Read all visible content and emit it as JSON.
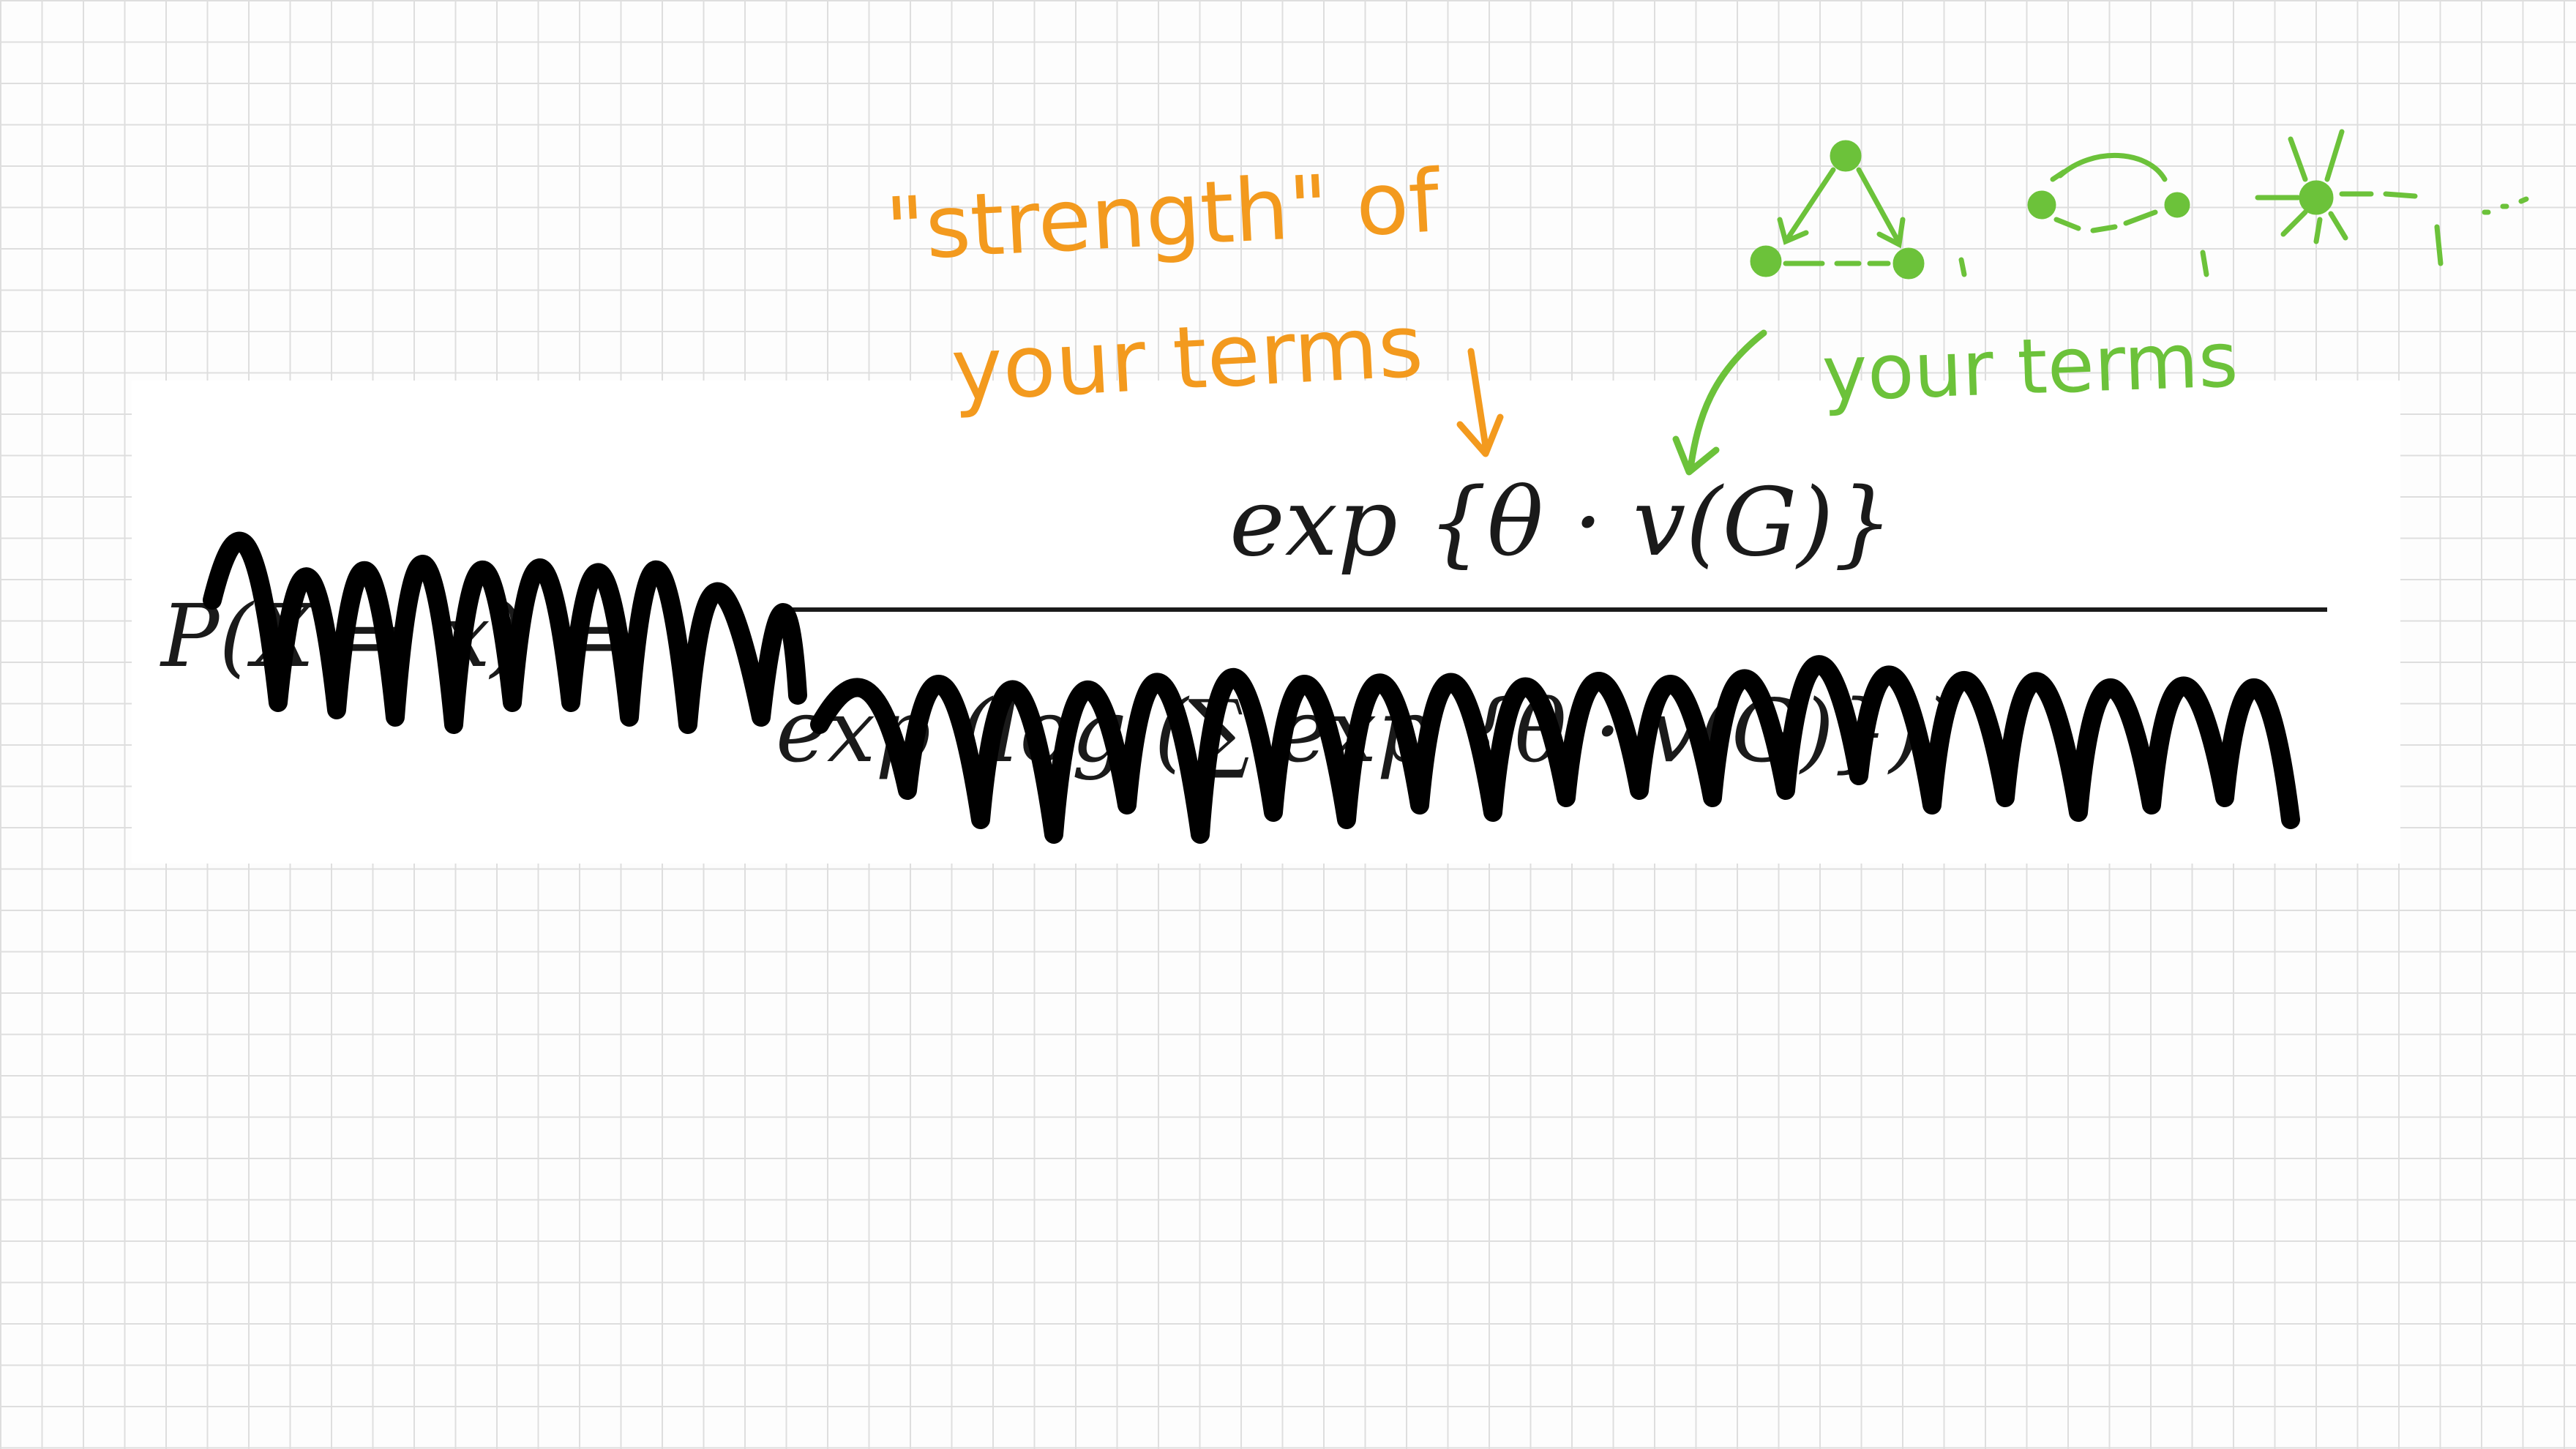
{
  "formula": {
    "numerator": "exp {θ · v(G)}",
    "lhs": "P(X = x) =",
    "denominator": "exp (log (∑ exp {θ · v(G)}))"
  },
  "annotations": {
    "strength_line1": "\"strength\" of",
    "strength_line2": "your terms",
    "terms_label": "your terms",
    "ellipsis": "..."
  },
  "colors": {
    "orange": "#f39a1e",
    "green": "#6cc23a",
    "ink": "#1a1a1a",
    "scribble": "#000000"
  }
}
